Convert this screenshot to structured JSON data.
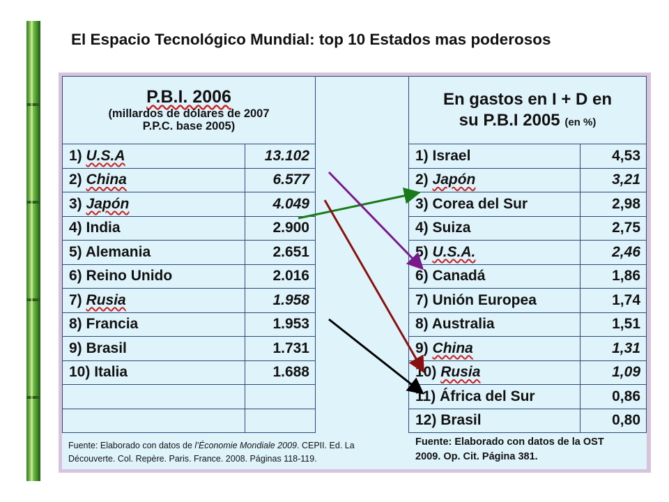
{
  "title": "El Espacio Tecnológico Mundial: top 10 Estados mas poderosos",
  "left_table": {
    "header_line1": "P.B.I. 2006",
    "header_line2": "(millardos de dólares de 2007",
    "header_line3": "P.P.C. base 2005)",
    "rows": [
      {
        "rank": "1)",
        "country": "U.S.A",
        "value": "13.102",
        "italic": true
      },
      {
        "rank": "2)",
        "country": "China",
        "value": "6.577",
        "italic": true
      },
      {
        "rank": "3)",
        "country": "Japón",
        "value": "4.049",
        "italic": true
      },
      {
        "rank": "4)",
        "country": "India",
        "value": "2.900",
        "italic": false
      },
      {
        "rank": "5)",
        "country": "Alemania",
        "value": "2.651",
        "italic": false
      },
      {
        "rank": "6)",
        "country": "Reino Unido",
        "value": "2.016",
        "italic": false
      },
      {
        "rank": "7)",
        "country": "Rusia",
        "value": "1.958",
        "italic": true
      },
      {
        "rank": "8)",
        "country": "Francia",
        "value": "1.953",
        "italic": false
      },
      {
        "rank": "9)",
        "country": "Brasil",
        "value": "1.731",
        "italic": false
      },
      {
        "rank": "10)",
        "country": "Italia",
        "value": "1.688",
        "italic": false
      }
    ],
    "source_prefix": "Fuente: Elaborado con datos de ",
    "source_italic": "l’Économie Mondiale 2009",
    "source_rest": ". CEPII. Ed. La",
    "source_line2": "Découverte. Col. Repère. Paris. France. 2008. Páginas 118-119."
  },
  "right_table": {
    "header_line1": "En gastos en I + D en",
    "header_line2": "su P.B.I 2005",
    "header_unit": "(en %)",
    "rows": [
      {
        "rank": "1)",
        "country": "Israel",
        "value": "4,53",
        "italic": false
      },
      {
        "rank": "2)",
        "country": "Japón",
        "value": "3,21",
        "italic": true
      },
      {
        "rank": "3)",
        "country": "Corea del Sur",
        "value": "2,98",
        "italic": false
      },
      {
        "rank": "4)",
        "country": "Suiza",
        "value": "2,75",
        "italic": false
      },
      {
        "rank": "5)",
        "country": "U.S.A.",
        "value": "2,46",
        "italic": true
      },
      {
        "rank": "6)",
        "country": "Canadá",
        "value": "1,86",
        "italic": false
      },
      {
        "rank": "7)",
        "country": "Unión Europea",
        "value": "1,74",
        "italic": false
      },
      {
        "rank": "8)",
        "country": "Australia",
        "value": "1,51",
        "italic": false
      },
      {
        "rank": "9)",
        "country": "China",
        "value": "1,31",
        "italic": true
      },
      {
        "rank": "10)",
        "country": "Rusia",
        "value": "1,09",
        "italic": true
      },
      {
        "rank": "11)",
        "country": "África del Sur",
        "value": "0,86",
        "italic": false
      },
      {
        "rank": "12)",
        "country": "Brasil",
        "value": "0,80",
        "italic": false
      }
    ],
    "source_line1": "Fuente: Elaborado con datos de la OST",
    "source_line2": "2009. Op. Cit. Página 381."
  },
  "arrows": [
    {
      "from": "Japón",
      "to": "Japón",
      "color": "#1a7a1a"
    },
    {
      "from": "U.S.A",
      "to": "U.S.A.",
      "color": "#7a1a8a"
    },
    {
      "from": "China",
      "to": "China",
      "color": "#8a1010"
    },
    {
      "from": "Brasil",
      "to": "Brasil",
      "color": "#000000"
    }
  ]
}
